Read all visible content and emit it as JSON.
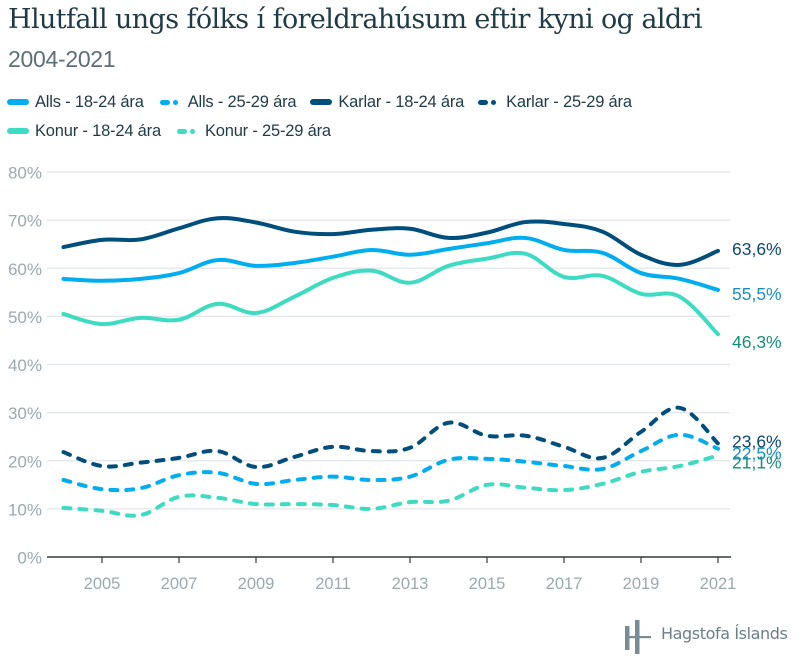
{
  "header": {
    "title": "Hlutfall ungs fólks í foreldrahúsum eftir kyni og aldri",
    "subtitle": "2004-2021"
  },
  "footer": {
    "brand": "Hagstofa Íslands",
    "logo_icon": "hagstofa-logo-icon",
    "color": "#7a8c93"
  },
  "chart_data": {
    "type": "line",
    "title": "Hlutfall ungs fólks í foreldrahúsum eftir kyni og aldri",
    "subtitle": "2004-2021",
    "xlabel": "",
    "ylabel": "",
    "x": [
      2004,
      2005,
      2006,
      2007,
      2008,
      2009,
      2010,
      2011,
      2012,
      2013,
      2014,
      2015,
      2016,
      2017,
      2018,
      2019,
      2020,
      2021
    ],
    "x_ticks": [
      "2005",
      "2007",
      "2009",
      "2011",
      "2013",
      "2015",
      "2017",
      "2019",
      "2021"
    ],
    "x_tick_values": [
      2005,
      2007,
      2009,
      2011,
      2013,
      2015,
      2017,
      2019,
      2021
    ],
    "y_ticks": [
      "0%",
      "10%",
      "20%",
      "30%",
      "40%",
      "50%",
      "60%",
      "70%",
      "80%"
    ],
    "y_tick_values": [
      0,
      10,
      20,
      30,
      40,
      50,
      60,
      70,
      80
    ],
    "ylim": [
      0,
      80
    ],
    "xlim": [
      2004,
      2021
    ],
    "grid": "horizontal",
    "legend_position": "top",
    "series": [
      {
        "name": "Alls - 18-24 ára",
        "style": "solid",
        "color": "#00aeef",
        "label_color": "#1a8fc4",
        "end_label": "55,5%",
        "values": [
          57.8,
          57.4,
          57.8,
          59.0,
          61.7,
          60.5,
          61.1,
          62.4,
          63.8,
          62.8,
          64.0,
          65.2,
          66.3,
          63.8,
          63.2,
          59.0,
          57.8,
          55.5
        ]
      },
      {
        "name": "Alls - 25-29 ára",
        "style": "dashed",
        "color": "#00aeef",
        "label_color": "#1a8fc4",
        "end_label": "22,5%",
        "values": [
          16.0,
          14.1,
          14.3,
          17.0,
          17.5,
          15.2,
          16.0,
          16.7,
          16.0,
          16.7,
          20.2,
          20.4,
          19.8,
          18.9,
          18.3,
          22.0,
          25.4,
          22.5
        ]
      },
      {
        "name": "Karlar - 18-24 ára",
        "style": "solid",
        "color": "#004e7c",
        "label_color": "#0b4a72",
        "end_label": "63,6%",
        "values": [
          64.4,
          65.9,
          66.0,
          68.3,
          70.4,
          69.5,
          67.6,
          67.1,
          68.0,
          68.2,
          66.3,
          67.4,
          69.6,
          69.2,
          67.6,
          62.8,
          60.7,
          63.6
        ]
      },
      {
        "name": "Karlar - 25-29 ára",
        "style": "dashed",
        "color": "#004e7c",
        "label_color": "#0b4a72",
        "end_label": "23,6%",
        "values": [
          21.8,
          18.9,
          19.6,
          20.6,
          22.0,
          18.7,
          20.8,
          22.9,
          22.0,
          22.7,
          27.9,
          25.2,
          25.2,
          22.9,
          20.6,
          26.0,
          31.0,
          23.6
        ]
      },
      {
        "name": "Konur - 18-24 ára",
        "style": "solid",
        "color": "#3ddbc1",
        "label_color": "#168f7a",
        "end_label": "46,3%",
        "values": [
          50.5,
          48.4,
          49.7,
          49.3,
          52.6,
          50.7,
          54.1,
          58.0,
          59.5,
          57.0,
          60.5,
          62.0,
          63.0,
          58.2,
          58.4,
          54.7,
          54.1,
          46.3
        ]
      },
      {
        "name": "Konur - 25-29 ára",
        "style": "dashed",
        "color": "#3ddbc1",
        "label_color": "#168f7a",
        "end_label": "21,1%",
        "values": [
          10.2,
          9.6,
          8.7,
          12.5,
          12.3,
          11.0,
          11.0,
          10.8,
          10.0,
          11.4,
          11.7,
          15.0,
          14.4,
          13.9,
          15.2,
          17.7,
          18.9,
          21.1
        ]
      }
    ]
  }
}
